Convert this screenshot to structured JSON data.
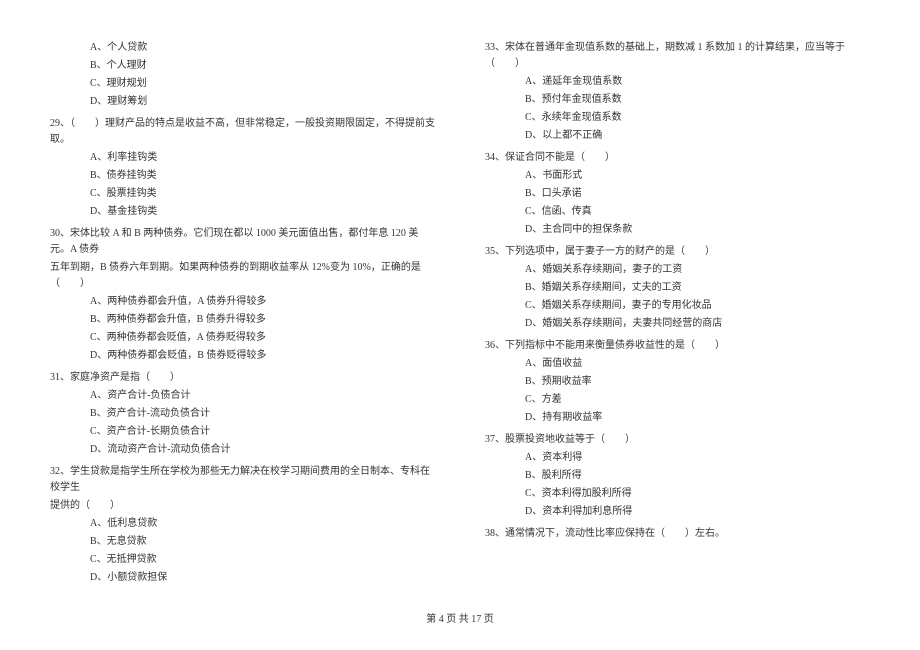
{
  "leftColumn": {
    "opts28": {
      "a": "A、个人贷款",
      "b": "B、个人理财",
      "c": "C、理财规划",
      "d": "D、理财筹划"
    },
    "q29": "29、（　　）理财产品的特点是收益不高，但非常稳定，一般投资期限固定，不得提前支取。",
    "opts29": {
      "a": "A、利率挂钩类",
      "b": "B、债券挂钩类",
      "c": "C、股票挂钩类",
      "d": "D、基金挂钩类"
    },
    "q30line1": "30、宋体比较 A 和 B 两种债券。它们现在都以 1000 美元面值出售，都付年息 120 美元。A 债券",
    "q30line2": "五年到期，B 债券六年到期。如果两种债券的到期收益率从 12%变为 10%，正确的是（　　）",
    "opts30": {
      "a": "A、两种债券都会升值，A 债券升得较多",
      "b": "B、两种债券都会升值，B 债券升得较多",
      "c": "C、两种债券都会贬值，A 债券贬得较多",
      "d": "D、两种债券都会贬值，B 债券贬得较多"
    },
    "q31": "31、家庭净资产是指（　　）",
    "opts31": {
      "a": "A、资产合计-负债合计",
      "b": "B、资产合计-流动负债合计",
      "c": "C、资产合计-长期负债合计",
      "d": "D、流动资产合计-流动负债合计"
    },
    "q32line1": "32、学生贷款是指学生所在学校为那些无力解决在校学习期间费用的全日制本、专科在校学生",
    "q32line2": "提供的（　　）",
    "opts32": {
      "a": "A、低利息贷款",
      "b": "B、无息贷款",
      "c": "C、无抵押贷款",
      "d": "D、小额贷款担保"
    }
  },
  "rightColumn": {
    "q33": "33、宋体在普通年金现值系数的基础上，期数减 1 系数加 1 的计算结果，应当等于（　　）",
    "opts33": {
      "a": "A、递延年金现值系数",
      "b": "B、预付年金现值系数",
      "c": "C、永续年金现值系数",
      "d": "D、以上都不正确"
    },
    "q34": "34、保证合同不能是（　　）",
    "opts34": {
      "a": "A、书面形式",
      "b": "B、口头承诺",
      "c": "C、信函、传真",
      "d": "D、主合同中的担保条款"
    },
    "q35": "35、下列选项中，属于妻子一方的财产的是（　　）",
    "opts35": {
      "a": "A、婚姻关系存续期间，妻子的工资",
      "b": "B、婚姻关系存续期间，丈夫的工资",
      "c": "C、婚姻关系存续期间，妻子的专用化妆品",
      "d": "D、婚姻关系存续期间，夫妻共同经营的商店"
    },
    "q36": "36、下列指标中不能用来衡量债券收益性的是（　　）",
    "opts36": {
      "a": "A、面值收益",
      "b": "B、预期收益率",
      "c": "C、方差",
      "d": "D、持有期收益率"
    },
    "q37": "37、股票投资地收益等于（　　）",
    "opts37": {
      "a": "A、资本利得",
      "b": "B、股利所得",
      "c": "C、资本利得加股利所得",
      "d": "D、资本利得加利息所得"
    },
    "q38": "38、通常情况下，流动性比率应保持在（　　）左右。"
  },
  "footer": "第 4 页 共 17 页"
}
